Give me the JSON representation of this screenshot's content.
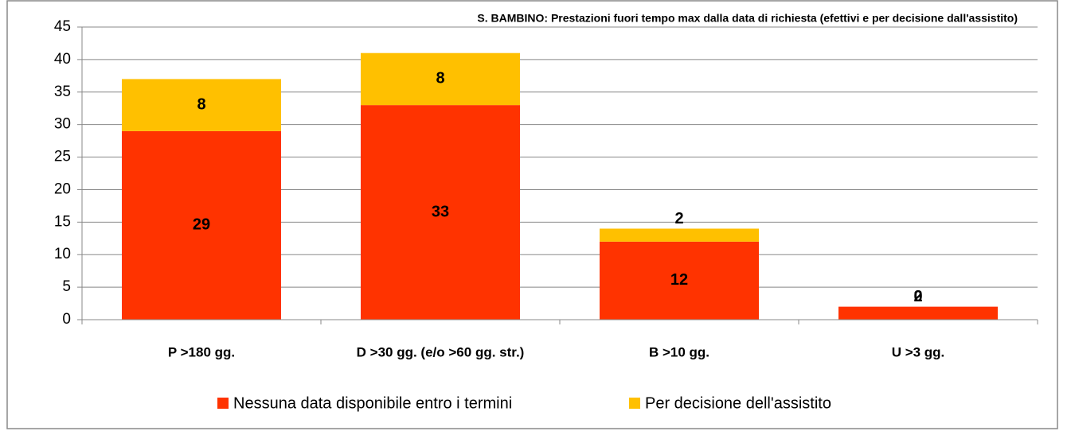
{
  "chart_data": {
    "type": "bar",
    "stacked": true,
    "title": "S. BAMBINO: Prestazioni fuori tempo max dalla data di richiesta (efettivi e per decisione dall'assistito)",
    "categories": [
      "P >180 gg.",
      "D >30 gg. (e/o >60 gg. str.)",
      "B >10 gg.",
      "U >3 gg."
    ],
    "series": [
      {
        "name": "Nessuna data disponibile entro i termini",
        "color": "#ff3300",
        "values": [
          29,
          33,
          12,
          2
        ]
      },
      {
        "name": "Per decisione dell'assistito",
        "color": "#ffc000",
        "values": [
          8,
          8,
          2,
          0
        ]
      }
    ],
    "ylim": [
      0,
      45
    ],
    "yticks": [
      0,
      5,
      10,
      15,
      20,
      25,
      30,
      35,
      40,
      45
    ],
    "grid": true,
    "legend": "bottom"
  }
}
